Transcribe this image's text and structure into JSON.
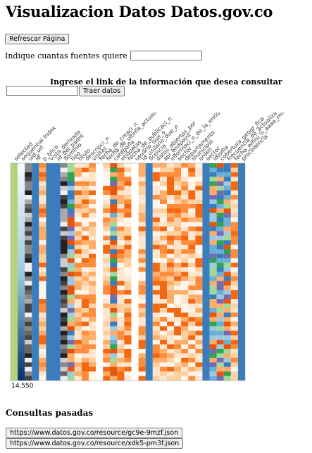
{
  "page_title": "Visualizacion Datos Datos.gov.co",
  "refresh_button": "Refrescar Página",
  "sources_label": "Indique cuantas fuentes quiere consultar:",
  "sources_value": "",
  "link_label": "Ingrese el link de la información que desea consultar",
  "link_value": "",
  "fetch_button": "Traer datos",
  "past_title": "Consultas pasadas",
  "past_queries": [
    "https://www.datos.gov.co/resource/gc9e-9mzf.json",
    "https://www.datos.gov.co/resource/xdk5-pm3f.json"
  ],
  "chart_data": {
    "type": "heatmap",
    "row_count_label": "14,550",
    "columns": [
      {
        "name": "selected",
        "style": "solid",
        "color": "#b4d27a"
      },
      {
        "name": "sequential Index",
        "style": "gradient",
        "color": "#1a4f8a"
      },
      {
        "name": "uid_url",
        "style": "gray",
        "color": "#555555"
      },
      {
        "name": "id",
        "style": "solid",
        "color": "#3a7dbd"
      },
      {
        "name": "p_blico",
        "style": "orange",
        "color": "#f08a3a"
      },
      {
        "name": "vista_derivada",
        "style": "solid",
        "color": "#3a7dbd"
      },
      {
        "name": "id_del_padre",
        "style": "solid",
        "color": "#3a7dbd"
      },
      {
        "name": "dominio",
        "style": "gray",
        "color": "#666666"
      },
      {
        "name": "tipo",
        "style": "multi",
        "color": "#3a7dbd"
      },
      {
        "name": "titulo",
        "style": "orange",
        "color": "#f08a3a"
      },
      {
        "name": "descripci_n",
        "style": "orange",
        "color": "#f08a3a"
      },
      {
        "name": "visitas",
        "style": "orange",
        "color": "#f08a3a"
      },
      {
        "name": "fecha_de_creaci_n",
        "style": "empty",
        "color": "#ffffff"
      },
      {
        "name": "fecha_de_ultima_actualizaci_n",
        "style": "orange",
        "color": "#f08a3a"
      },
      {
        "name": "categoria",
        "style": "multi",
        "color": "#3a7dbd"
      },
      {
        "name": "etiquetas",
        "style": "orange",
        "color": "#f08a3a"
      },
      {
        "name": "fecha_de_publicaci_n",
        "style": "orange",
        "color": "#f08a3a"
      },
      {
        "name": "usuario_due_o",
        "style": "empty",
        "color": "#ffffff"
      },
      {
        "name": "id_usuario_due_o",
        "style": "orange",
        "color": "#f08a3a"
      },
      {
        "name": "licencia",
        "style": "solid",
        "color": "#3a7dbd"
      },
      {
        "name": "datos_abiertos_por",
        "style": "orange",
        "color": "#f08a3a"
      },
      {
        "name": "api_endpoint",
        "style": "orange",
        "color": "#f08a3a"
      },
      {
        "name": "informaci_n_de_la_entidad",
        "style": "orange",
        "color": "#f08a3a"
      },
      {
        "name": "sector",
        "style": "orange",
        "color": "#f08a3a"
      },
      {
        "name": "departamento",
        "style": "orange",
        "color": "#f08a3a"
      },
      {
        "name": "municipio",
        "style": "orange",
        "color": "#f08a3a"
      },
      {
        "name": "orden",
        "style": "orange",
        "color": "#f08a3a"
      },
      {
        "name": "sector_",
        "style": "solid",
        "color": "#3a7dbd"
      },
      {
        "name": "idioma",
        "style": "multi",
        "color": "#3a7dbd"
      },
      {
        "name": "cobertura_geogr_fica",
        "style": "multi",
        "color": "#3a7dbd"
      },
      {
        "name": "frecuencia_de_actualizaci_n",
        "style": "multi",
        "color": "#3a7dbd"
      },
      {
        "name": "fecha_emisi_n_aaaa_mm_dd",
        "style": "orange",
        "color": "#f08a3a"
      },
      {
        "name": "procedencia",
        "style": "solid",
        "color": "#3a7dbd"
      }
    ]
  }
}
